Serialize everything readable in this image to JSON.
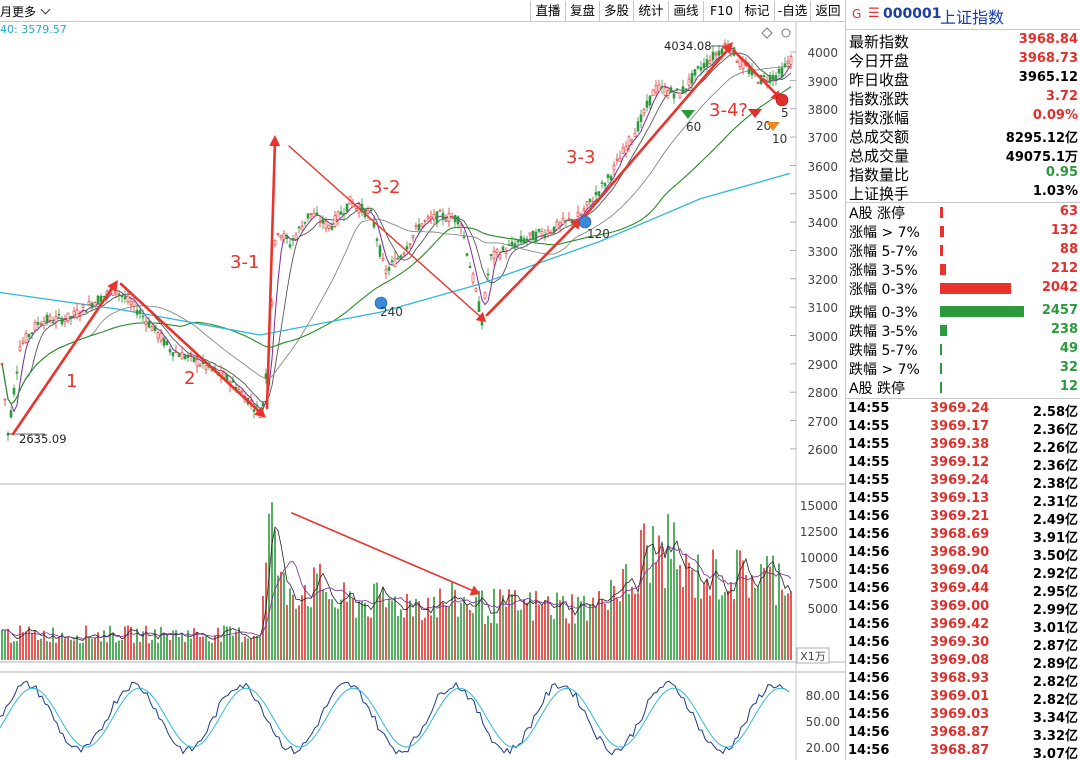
{
  "toolbar": {
    "left_fragment": "月",
    "more_label": "更多",
    "buttons": [
      "直播",
      "复盘",
      "多股",
      "统计",
      "画线",
      "F10",
      "标记",
      "-自选",
      "返回"
    ]
  },
  "ma_label": "40: 3579.57",
  "chart": {
    "price_axis": [
      "4000",
      "3900",
      "3800",
      "3700",
      "3600",
      "3500",
      "3400",
      "3300",
      "3200",
      "3100",
      "3000",
      "2900",
      "2800",
      "2700",
      "2600"
    ],
    "volume_axis": [
      "15000",
      "12500",
      "10000",
      "7500",
      "5000"
    ],
    "volume_unit": "X1万",
    "osc_axis": [
      "80.00",
      "50.00",
      "20.00"
    ],
    "high_label": "4034.08",
    "low_label": "2635.09",
    "wave_labels": [
      "1",
      "2",
      "3-1",
      "3-2",
      "3-3",
      "3-4?",
      "5"
    ],
    "marker_labels": [
      "240",
      "120",
      "60",
      "20",
      "10"
    ],
    "colors": {
      "up": "#e0302c",
      "down": "#2c9a3c",
      "ma_cyan": "#30b8d8",
      "ma_green": "#2a8a2a",
      "ma_purple": "#7a2a9a",
      "annotation": "#e8342c"
    }
  },
  "right_panel": {
    "header": {
      "g": "G",
      "menu": "☰",
      "code": "000001",
      "name": "上证指数"
    },
    "stats": [
      {
        "label": "最新指数",
        "value": "3968.84",
        "color": "#e0302c"
      },
      {
        "label": "今日开盘",
        "value": "3968.73",
        "color": "#e0302c"
      },
      {
        "label": "昨日收盘",
        "value": "3965.12",
        "color": "#000000"
      },
      {
        "label": "指数涨跌",
        "value": "3.72",
        "color": "#e0302c"
      },
      {
        "label": "指数涨幅",
        "value": "0.09%",
        "color": "#e0302c"
      },
      {
        "label": "总成交额",
        "value": "8295.12亿",
        "color": "#000000"
      },
      {
        "label": "总成交量",
        "value": "49075.1万",
        "color": "#000000"
      },
      {
        "label": "指数量比",
        "value": "0.95",
        "color": "#2c9a3c"
      },
      {
        "label": "上证换手",
        "value": "1.03%",
        "color": "#000000"
      }
    ],
    "up_bars": [
      {
        "label": "A股 涨停",
        "value": "63",
        "fill": 0.03
      },
      {
        "label": "涨幅 > 7%",
        "value": "132",
        "fill": 0.05
      },
      {
        "label": "涨幅 5-7%",
        "value": "88",
        "fill": 0.04
      },
      {
        "label": "涨幅 3-5%",
        "value": "212",
        "fill": 0.07
      },
      {
        "label": "涨幅 0-3%",
        "value": "2042",
        "fill": 0.84
      }
    ],
    "down_bars": [
      {
        "label": "跌幅 0-3%",
        "value": "2457",
        "fill": 1.0
      },
      {
        "label": "跌幅 3-5%",
        "value": "238",
        "fill": 0.08
      },
      {
        "label": "跌幅 5-7%",
        "value": "49",
        "fill": 0.02
      },
      {
        "label": "跌幅 > 7%",
        "value": "32",
        "fill": 0.02
      },
      {
        "label": "A股 跌停",
        "value": "12",
        "fill": 0.02
      }
    ],
    "ticks": [
      {
        "time": "14:55",
        "price": "3969.24",
        "vol": "2.58亿"
      },
      {
        "time": "14:55",
        "price": "3969.17",
        "vol": "2.36亿"
      },
      {
        "time": "14:55",
        "price": "3969.38",
        "vol": "2.26亿"
      },
      {
        "time": "14:55",
        "price": "3969.12",
        "vol": "2.36亿"
      },
      {
        "time": "14:55",
        "price": "3969.24",
        "vol": "2.38亿"
      },
      {
        "time": "14:55",
        "price": "3969.13",
        "vol": "2.31亿"
      },
      {
        "time": "14:56",
        "price": "3969.21",
        "vol": "2.49亿"
      },
      {
        "time": "14:56",
        "price": "3968.69",
        "vol": "3.91亿"
      },
      {
        "time": "14:56",
        "price": "3968.90",
        "vol": "3.50亿"
      },
      {
        "time": "14:56",
        "price": "3969.04",
        "vol": "2.92亿"
      },
      {
        "time": "14:56",
        "price": "3969.44",
        "vol": "2.95亿"
      },
      {
        "time": "14:56",
        "price": "3969.00",
        "vol": "2.99亿"
      },
      {
        "time": "14:56",
        "price": "3969.42",
        "vol": "3.01亿"
      },
      {
        "time": "14:56",
        "price": "3969.30",
        "vol": "2.87亿"
      },
      {
        "time": "14:56",
        "price": "3969.08",
        "vol": "2.89亿"
      },
      {
        "time": "14:56",
        "price": "3968.93",
        "vol": "2.82亿"
      },
      {
        "time": "14:56",
        "price": "3969.01",
        "vol": "2.82亿"
      },
      {
        "time": "14:56",
        "price": "3969.03",
        "vol": "3.34亿"
      },
      {
        "time": "14:56",
        "price": "3968.87",
        "vol": "3.32亿"
      },
      {
        "time": "14:56",
        "price": "3968.87",
        "vol": "3.07亿"
      }
    ]
  }
}
